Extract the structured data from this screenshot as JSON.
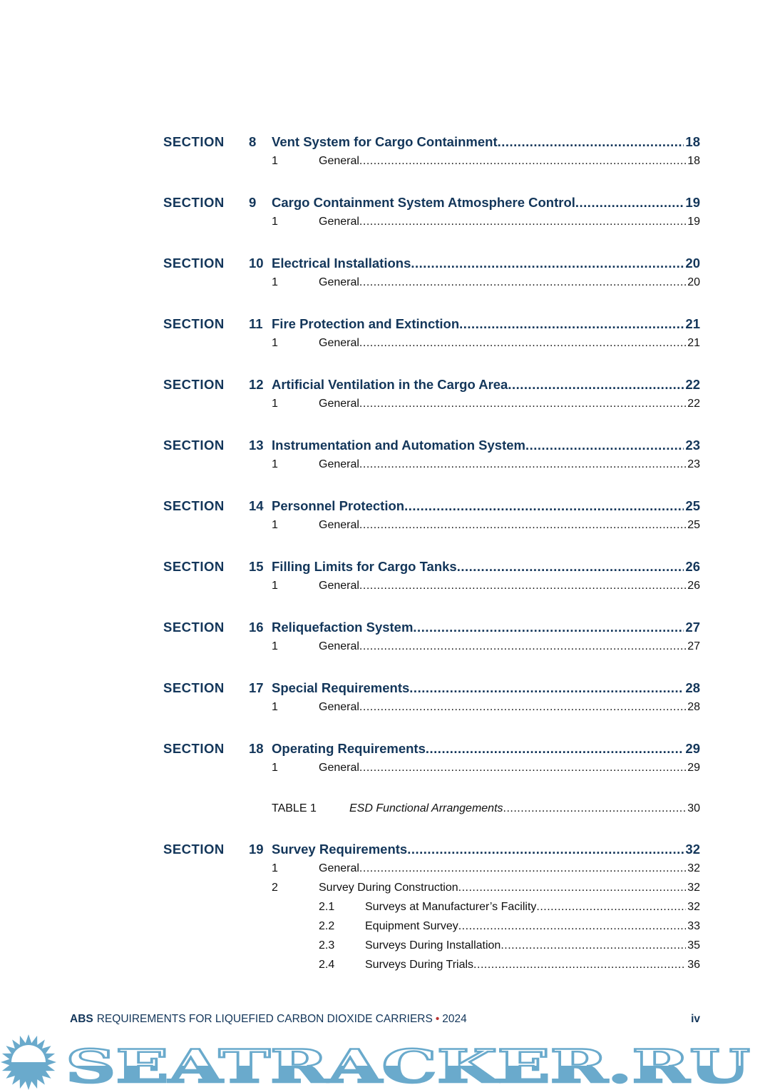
{
  "toc": {
    "section_label": "SECTION",
    "sections": [
      {
        "num": "8",
        "title": "Vent System for Cargo Containment",
        "page": "18",
        "items": [
          {
            "num": "1",
            "title": "General",
            "page": "18"
          }
        ]
      },
      {
        "num": "9",
        "title": "Cargo Containment System Atmosphere Control",
        "page": "19",
        "items": [
          {
            "num": "1",
            "title": "General",
            "page": "19"
          }
        ]
      },
      {
        "num": "10",
        "title": "Electrical Installations",
        "page": "20",
        "items": [
          {
            "num": "1",
            "title": "General",
            "page": "20"
          }
        ]
      },
      {
        "num": "11",
        "title": "Fire Protection and Extinction",
        "page": "21",
        "items": [
          {
            "num": "1",
            "title": "General",
            "page": "21"
          }
        ]
      },
      {
        "num": "12",
        "title": "Artificial Ventilation in the Cargo Area",
        "page": "22",
        "items": [
          {
            "num": "1",
            "title": "General",
            "page": "22"
          }
        ]
      },
      {
        "num": "13",
        "title": "Instrumentation and Automation System",
        "page": "23",
        "items": [
          {
            "num": "1",
            "title": "General",
            "page": "23"
          }
        ]
      },
      {
        "num": "14",
        "title": "Personnel Protection",
        "page": "25",
        "items": [
          {
            "num": "1",
            "title": "General",
            "page": "25"
          }
        ]
      },
      {
        "num": "15",
        "title": "Filling Limits for Cargo Tanks",
        "page": "26",
        "items": [
          {
            "num": "1",
            "title": "General",
            "page": "26"
          }
        ]
      },
      {
        "num": "16",
        "title": "Reliquefaction System",
        "page": "27",
        "items": [
          {
            "num": "1",
            "title": "General",
            "page": "27"
          }
        ]
      },
      {
        "num": "17",
        "title": "Special Requirements",
        "page": "28",
        "items": [
          {
            "num": "1",
            "title": "General",
            "page": "28"
          }
        ]
      },
      {
        "num": "18",
        "title": "Operating Requirements",
        "page": "29",
        "items": [
          {
            "num": "1",
            "title": "General",
            "page": "29"
          }
        ],
        "table": {
          "label": "TABLE 1",
          "title": "ESD Functional Arrangements",
          "page": "30"
        }
      },
      {
        "num": "19",
        "title": "Survey Requirements",
        "page": "32",
        "items": [
          {
            "num": "1",
            "title": "General",
            "page": "32"
          },
          {
            "num": "2",
            "title": "Survey During Construction",
            "page": "32",
            "sub": [
              {
                "num": "2.1",
                "title": "Surveys at Manufacturer’s Facility",
                "page": "32"
              },
              {
                "num": "2.2",
                "title": "Equipment Survey",
                "page": "33"
              },
              {
                "num": "2.3",
                "title": "Surveys During Installation",
                "page": "35"
              },
              {
                "num": "2.4",
                "title": "Surveys During Trials",
                "page": "36"
              }
            ]
          }
        ]
      }
    ]
  },
  "footer": {
    "org": "ABS",
    "title": "REQUIREMENTS FOR LIQUEFIED CARBON DIOXIDE CARRIERS",
    "separator": "•",
    "year": "2024",
    "page": "iv"
  },
  "watermark": {
    "text": "SEATRACKER.RU",
    "color": "#6aaacc"
  },
  "colors": {
    "heading": "#13365a",
    "body": "#111111"
  }
}
